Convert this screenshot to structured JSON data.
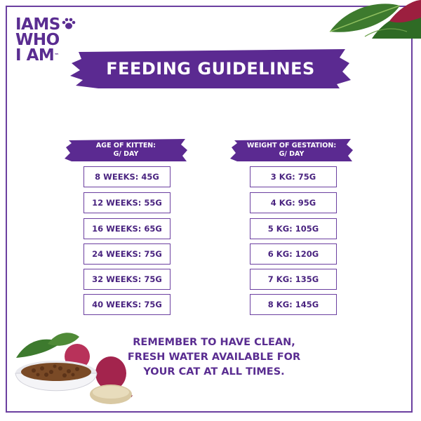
{
  "brand": {
    "line1": "IAMS",
    "line2": "WHO",
    "line3": "I AM",
    "trademark": "™"
  },
  "title": "FEEDING GUIDELINES",
  "kitten_table": {
    "header_line1": "AGE OF KITTEN:",
    "header_line2": "G/ DAY",
    "rows": [
      "8 WEEKS: 45G",
      "12 WEEKS: 55G",
      "16 WEEKS: 65G",
      "24 WEEKS: 75G",
      "32 WEEKS: 75G",
      "40 WEEKS: 75G"
    ]
  },
  "gestation_table": {
    "header_line1": "WEIGHT OF GESTATION:",
    "header_line2": "G/ DAY",
    "rows": [
      "3 KG: 75G",
      "4 KG: 95G",
      "5 KG: 105G",
      "6 KG: 120G",
      "7 KG: 135G",
      "8 KG: 145G"
    ]
  },
  "reminder": {
    "line1": "REMEMBER TO HAVE CLEAN,",
    "line2": "FRESH WATER AVAILABLE FOR",
    "line3": "YOUR CAT AT ALL TIMES."
  },
  "colors": {
    "brand_purple": "#5a2d91",
    "banner_purple": "#5b2a91",
    "border_purple": "#6b3fa0"
  },
  "icons": [
    "paw-icon",
    "leaves-illustration",
    "food-bowl-illustration"
  ]
}
